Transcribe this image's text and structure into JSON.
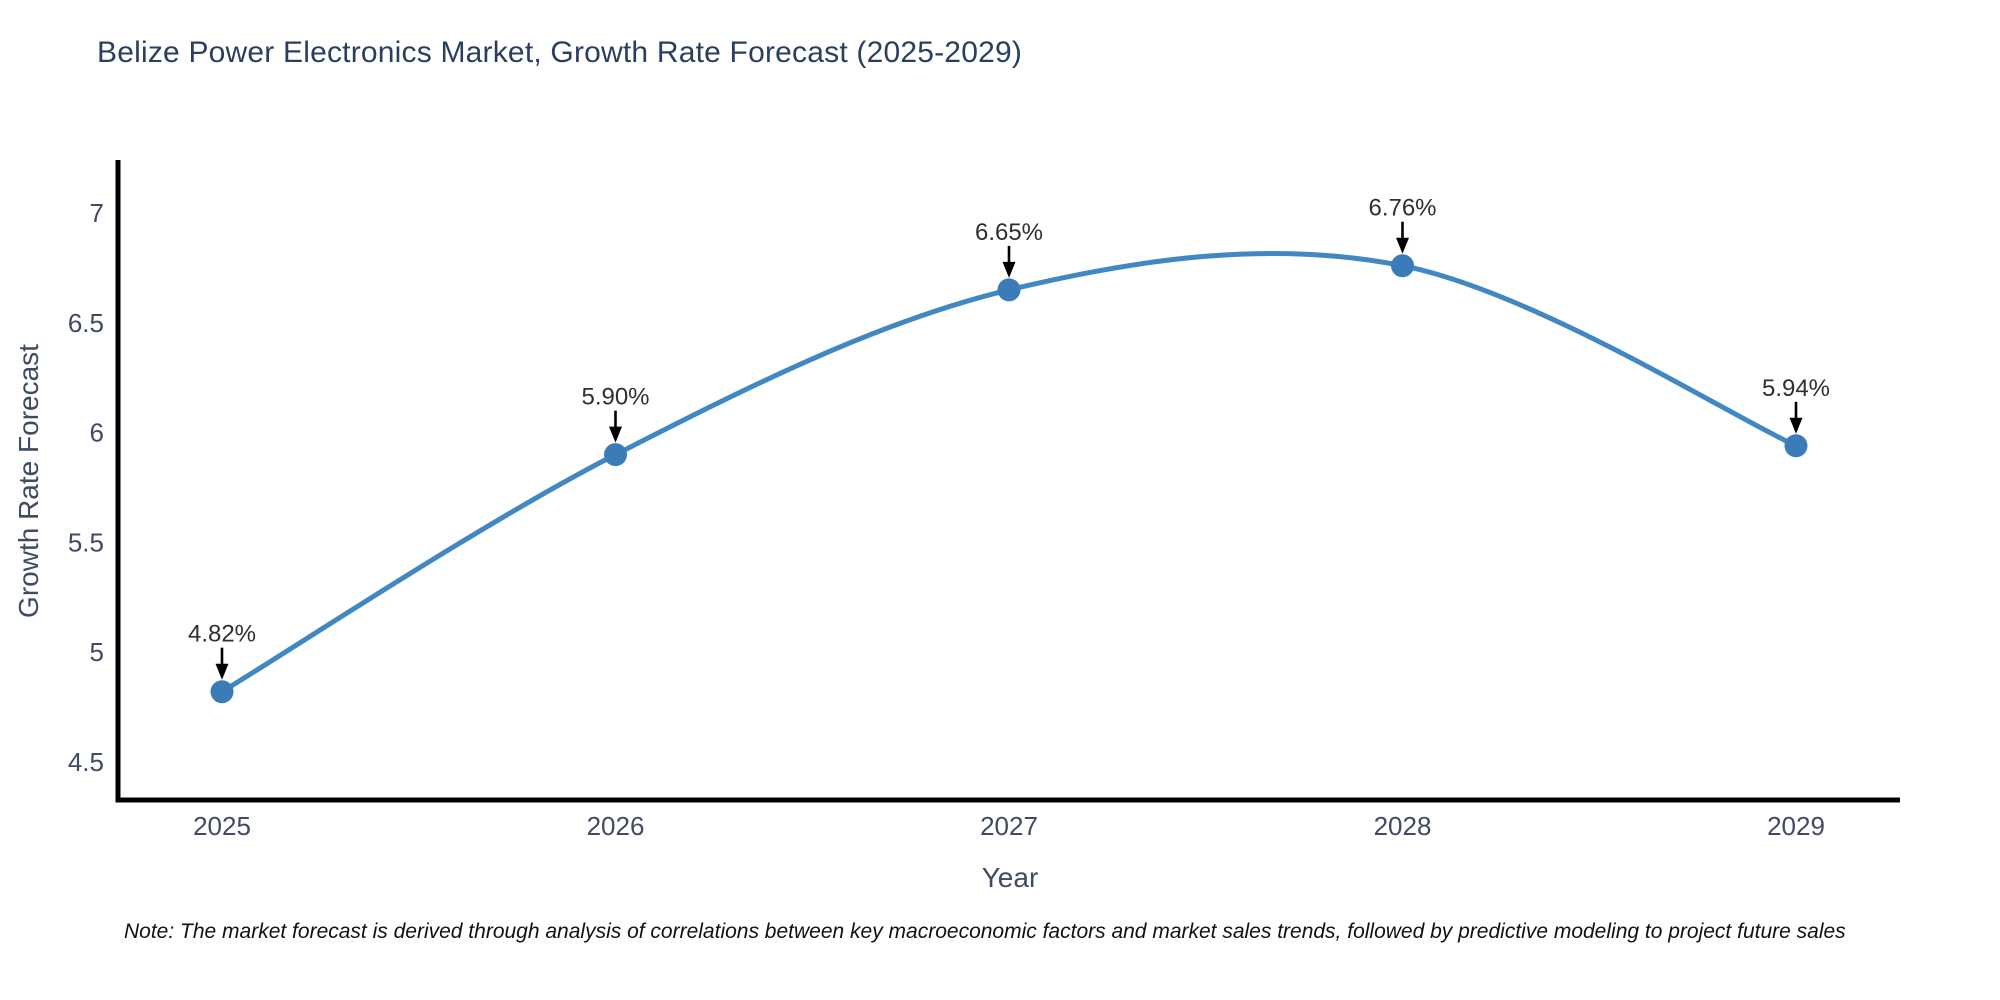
{
  "title": "Belize Power Electronics Market, Growth Rate Forecast (2025-2029)",
  "note": "Note: The market forecast is derived through analysis of correlations between key macroeconomic factors and market sales trends, followed by predictive modeling to project future sales",
  "chart_data": {
    "type": "line",
    "title": "Belize Power Electronics Market, Growth Rate Forecast (2025-2029)",
    "x": [
      "2025",
      "2026",
      "2027",
      "2028",
      "2029"
    ],
    "values": [
      4.82,
      5.9,
      6.65,
      6.76,
      5.94
    ],
    "point_labels": [
      "4.82%",
      "5.90%",
      "6.65%",
      "6.76%",
      "5.94%"
    ],
    "xlabel": "Year",
    "ylabel": "Growth Rate Forecast",
    "ytick_labels": [
      "7",
      "6.5",
      "6",
      "5.5",
      "5",
      "4.5"
    ],
    "ytick_values": [
      7,
      6.5,
      6,
      5.5,
      5,
      4.5
    ],
    "ylim": [
      4.33,
      7.24
    ],
    "line_shape": "spline",
    "grid": false,
    "legend": "none",
    "colors": {
      "line": "#4187c2",
      "marker": "#3b7cb8",
      "axis": "#000000",
      "annotation_arrow": "#000000",
      "tick_text": "#3f4a63",
      "title_text": "#2a3f5f"
    }
  }
}
